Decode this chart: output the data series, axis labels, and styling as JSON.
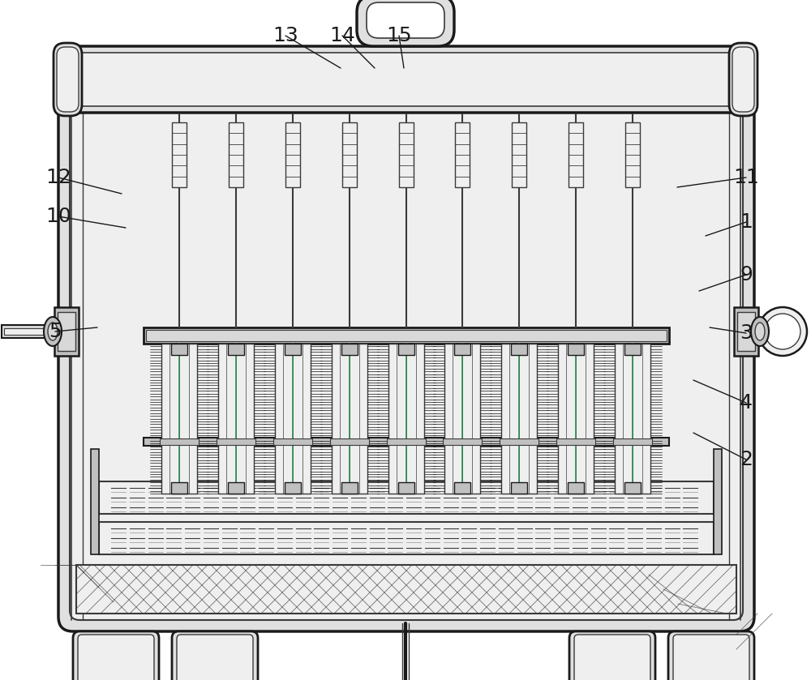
{
  "bg_color": "#ffffff",
  "lc": "#3a3a3a",
  "lc_dark": "#1a1a1a",
  "green_color": "#2d8a4e",
  "fill_outer": "#e0e0e0",
  "fill_inner": "#efefef",
  "fill_white": "#ffffff",
  "fill_mid": "#c0c0c0",
  "fill_light": "#d8d8d8",
  "n_brushes": 9,
  "figsize": [
    10.0,
    8.39
  ],
  "dpi": 100
}
